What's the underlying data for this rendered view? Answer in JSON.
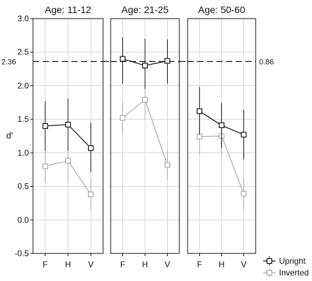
{
  "chart_data": {
    "type": "line",
    "ylabel": "d'",
    "ylim": [
      -0.5,
      3.0
    ],
    "yticks": [
      "-0.5",
      "0.0",
      "0.5",
      "1.0",
      "1.5",
      "2.0",
      "2.5",
      "3.0"
    ],
    "categories": [
      "F",
      "H",
      "V"
    ],
    "grid": true,
    "reference_line": {
      "y": 2.36,
      "left_label": "2.36",
      "right_label": "0.86",
      "style": "dashed"
    },
    "legend": {
      "placement": "bottom-right",
      "entries": [
        "Upright",
        "Inverted"
      ]
    },
    "series_styles": {
      "Upright": {
        "color": "#111111"
      },
      "Inverted": {
        "color": "#a8a8a8"
      }
    },
    "panels": [
      {
        "title": "Age: 11-12",
        "series": [
          {
            "name": "Upright",
            "values": [
              1.4,
              1.42,
              1.07
            ],
            "err_low": [
              1.03,
              1.03,
              0.71
            ],
            "err_high": [
              1.77,
              1.81,
              1.45
            ]
          },
          {
            "name": "Inverted",
            "values": [
              0.8,
              0.88,
              0.38
            ],
            "err_low": [
              0.55,
              0.56,
              0.15
            ],
            "err_high": [
              1.06,
              1.2,
              0.62
            ]
          }
        ]
      },
      {
        "title": "Age: 21-25",
        "series": [
          {
            "name": "Upright",
            "values": [
              2.4,
              2.3,
              2.37
            ],
            "err_low": [
              2.03,
              1.95,
              2.03
            ],
            "err_high": [
              2.72,
              2.7,
              2.69
            ]
          },
          {
            "name": "Inverted",
            "values": [
              1.52,
              1.79,
              0.82
            ],
            "err_low": [
              1.29,
              1.5,
              0.6
            ],
            "err_high": [
              1.75,
              2.1,
              1.04
            ]
          }
        ]
      },
      {
        "title": "Age: 50-60",
        "series": [
          {
            "name": "Upright",
            "values": [
              1.62,
              1.41,
              1.27
            ],
            "err_low": [
              1.27,
              1.07,
              0.9
            ],
            "err_high": [
              1.98,
              1.74,
              1.64
            ]
          },
          {
            "name": "Inverted",
            "values": [
              1.24,
              1.25,
              0.39
            ],
            "err_low": [
              0.98,
              0.93,
              0.16
            ],
            "err_high": [
              1.49,
              1.57,
              0.63
            ]
          }
        ]
      }
    ]
  }
}
